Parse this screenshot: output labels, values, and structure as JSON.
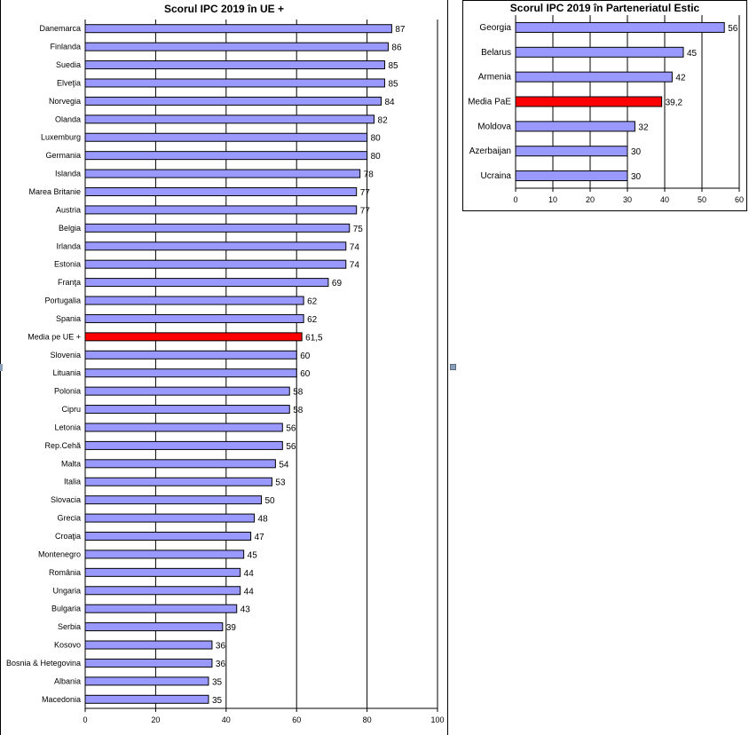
{
  "chart_data": [
    {
      "type": "bar",
      "orientation": "horizontal",
      "title": "Scorul IPC 2019 în UE +",
      "xlim": [
        0,
        100
      ],
      "xticks": [
        "0",
        "20",
        "40",
        "60",
        "80",
        "100"
      ],
      "grid": "vertical major gridlines",
      "categories": [
        "Danemarca",
        "Finlanda",
        "Suedia",
        "Elveţia",
        "Norvegia",
        "Olanda",
        "Luxemburg",
        "Germania",
        "Islanda",
        "Marea Britanie",
        "Austria",
        "Belgia",
        "Irlanda",
        "Estonia",
        "Franţa",
        "Portugalia",
        "Spania",
        "Media pe UE +",
        "Slovenia",
        "Lituania",
        "Polonia",
        "Cipru",
        "Letonia",
        "Rep.Cehă",
        "Malta",
        "Italia",
        "Slovacia",
        "Grecia",
        "Croaţia",
        "Montenegro",
        "România",
        "Ungaria",
        "Bulgaria",
        "Serbia",
        "Kosovo",
        "Bosnia & Hetegovina",
        "Albania",
        "Macedonia"
      ],
      "values": [
        87,
        86,
        85,
        85,
        84,
        82,
        80,
        80,
        78,
        77,
        77,
        75,
        74,
        74,
        69,
        62,
        62,
        61.5,
        60,
        60,
        58,
        58,
        56,
        56,
        54,
        53,
        50,
        48,
        47,
        45,
        44,
        44,
        43,
        39,
        36,
        36,
        35,
        35
      ],
      "value_labels": [
        "87",
        "86",
        "85",
        "85",
        "84",
        "82",
        "80",
        "80",
        "78",
        "77",
        "77",
        "75",
        "74",
        "74",
        "69",
        "62",
        "62",
        "61,5",
        "60",
        "60",
        "58",
        "58",
        "56",
        "56",
        "54",
        "53",
        "50",
        "48",
        "47",
        "45",
        "44",
        "44",
        "43",
        "39",
        "36",
        "36",
        "35",
        "35"
      ],
      "highlight": "Media pe UE +",
      "colors": {
        "bar": "#9999ff",
        "highlight": "#ff0000"
      }
    },
    {
      "type": "bar",
      "orientation": "horizontal",
      "title": "Scorul IPC 2019 în Parteneriatul Estic",
      "xlim": [
        0,
        60
      ],
      "xticks": [
        "0",
        "10",
        "20",
        "30",
        "40",
        "50",
        "60"
      ],
      "grid": "vertical major gridlines",
      "categories": [
        "Georgia",
        "Belarus",
        "Armenia",
        "Media PaE",
        "Moldova",
        "Azerbaijan",
        "Ucraina"
      ],
      "values": [
        56,
        45,
        42,
        39.2,
        32,
        30,
        30
      ],
      "value_labels": [
        "56",
        "45",
        "42",
        "39,2",
        "32",
        "30",
        "30"
      ],
      "highlight": "Media PaE",
      "colors": {
        "bar": "#9999ff",
        "highlight": "#ff0000"
      }
    }
  ]
}
